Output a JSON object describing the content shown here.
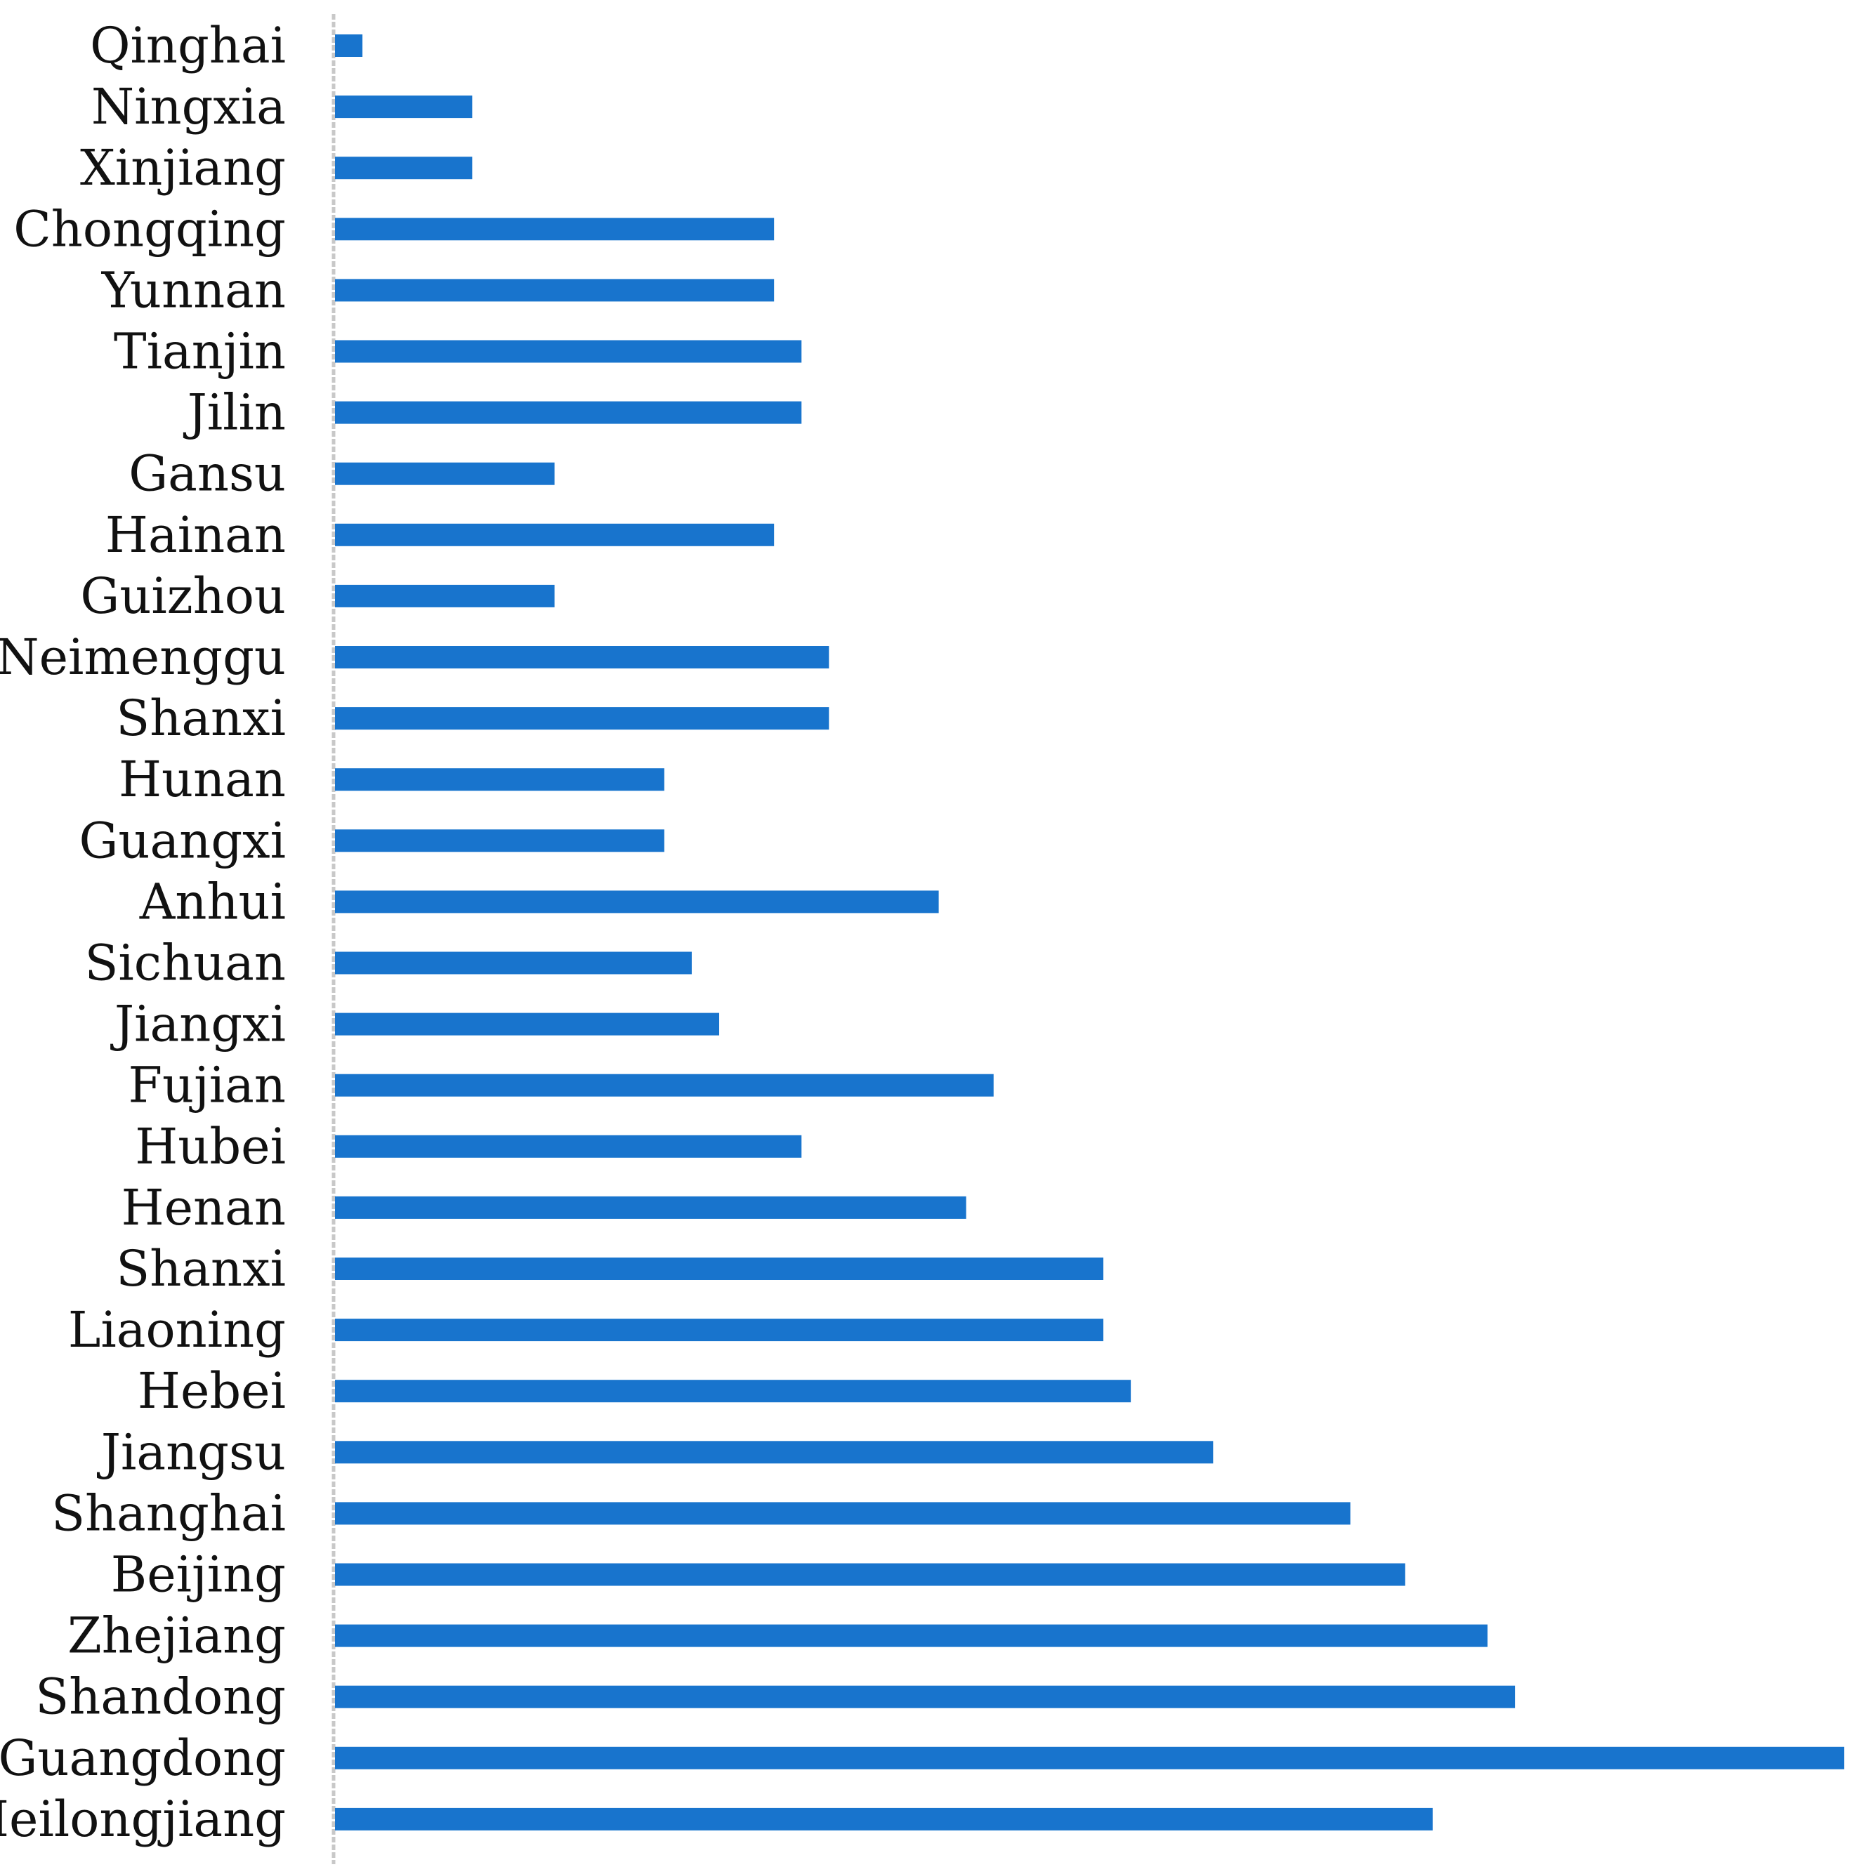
{
  "chart_data": {
    "type": "bar",
    "orientation": "horizontal",
    "categories": [
      "Qinghai",
      "Ningxia",
      "Xinjiang",
      "Chongqing",
      "Yunnan",
      "Tianjin",
      "Jilin",
      "Gansu",
      "Hainan",
      "Guizhou",
      "Neimenggu",
      "Shanxi",
      "Hunan",
      "Guangxi",
      "Anhui",
      "Sichuan",
      "Jiangxi",
      "Fujian",
      "Hubei",
      "Henan",
      "Shanxi",
      "Liaoning",
      "Hebei",
      "Jiangsu",
      "Shanghai",
      "Beijing",
      "Zhejiang",
      "Shandong",
      "Guangdong",
      "Heilongjiang"
    ],
    "values": [
      1,
      5,
      5,
      16,
      16,
      17,
      17,
      8,
      16,
      8,
      18,
      18,
      12,
      12,
      22,
      13,
      14,
      24,
      17,
      23,
      28,
      28,
      29,
      32,
      37,
      39,
      42,
      43,
      55,
      40
    ],
    "title": "",
    "xlabel": "",
    "ylabel": "",
    "xlim": [
      0,
      55
    ],
    "grid": false,
    "legend": "none",
    "bar_color": "#1874CD",
    "axis_color": "#C8C8C8",
    "label_color": "#111111"
  }
}
